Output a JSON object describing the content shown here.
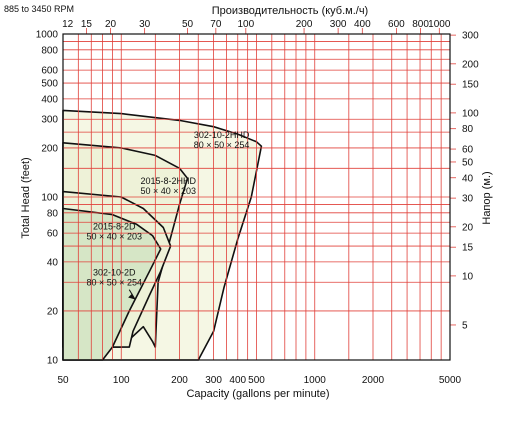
{
  "chart_data": {
    "type": "area",
    "note_text": "885 to 3450 RPM",
    "xlabel": "Capacity (gallons per minute)",
    "ylabel": "Total Head (feet)",
    "x2label": "Производительность (куб.м./ч)",
    "y2label": "Напор (м.)",
    "x_scale": "log",
    "y_scale": "log",
    "xlim": [
      50,
      5000
    ],
    "ylim": [
      10,
      1000
    ],
    "x_ticks": [
      {
        "value": 50,
        "label": "50"
      },
      {
        "value": 100,
        "label": "100"
      },
      {
        "value": 200,
        "label": "200"
      },
      {
        "value": 300,
        "label": "300"
      },
      {
        "value": 400,
        "label": "400"
      },
      {
        "value": 500,
        "label": "500"
      },
      {
        "value": 1000,
        "label": "1000"
      },
      {
        "value": 2000,
        "label": "2000"
      },
      {
        "value": 5000,
        "label": "5000"
      }
    ],
    "y_ticks": [
      {
        "value": 10,
        "label": "10"
      },
      {
        "value": 20,
        "label": "20"
      },
      {
        "value": 40,
        "label": "40"
      },
      {
        "value": 60,
        "label": "60"
      },
      {
        "value": 80,
        "label": "80"
      },
      {
        "value": 100,
        "label": "100"
      },
      {
        "value": 200,
        "label": "200"
      },
      {
        "value": 300,
        "label": "300"
      },
      {
        "value": 400,
        "label": "400"
      },
      {
        "value": 500,
        "label": "500"
      },
      {
        "value": 600,
        "label": "600"
      },
      {
        "value": 800,
        "label": "800"
      },
      {
        "value": 1000,
        "label": "1000"
      }
    ],
    "x2_ticks": [
      {
        "value": 12,
        "label": "12"
      },
      {
        "value": 15,
        "label": "15"
      },
      {
        "value": 20,
        "label": "20"
      },
      {
        "value": 30,
        "label": "30"
      },
      {
        "value": 50,
        "label": "50"
      },
      {
        "value": 70,
        "label": "70"
      },
      {
        "value": 100,
        "label": "100"
      },
      {
        "value": 200,
        "label": "200"
      },
      {
        "value": 300,
        "label": "300"
      },
      {
        "value": 400,
        "label": "400"
      },
      {
        "value": 600,
        "label": "600"
      },
      {
        "value": 800,
        "label": "800"
      },
      {
        "value": 1000,
        "label": "1000"
      }
    ],
    "y2_ticks": [
      {
        "value": 300,
        "label": "300"
      },
      {
        "value": 200,
        "label": "200"
      },
      {
        "value": 150,
        "label": "150"
      },
      {
        "value": 100,
        "label": "100"
      },
      {
        "value": 80,
        "label": "80"
      },
      {
        "value": 60,
        "label": "60"
      },
      {
        "value": 50,
        "label": "50"
      },
      {
        "value": 40,
        "label": "40"
      },
      {
        "value": 30,
        "label": "30"
      },
      {
        "value": 20,
        "label": "20"
      },
      {
        "value": 15,
        "label": "15"
      },
      {
        "value": 10,
        "label": "10"
      },
      {
        "value": 5,
        "label": "5"
      }
    ],
    "grid_x_values": [
      60,
      70,
      80,
      90,
      100,
      150,
      200,
      250,
      300,
      350,
      400,
      450,
      500,
      600,
      700,
      800,
      900,
      1000,
      1500,
      2000,
      2500,
      3000,
      3500,
      4000,
      4500
    ],
    "grid_y_values": [
      20,
      30,
      40,
      50,
      60,
      70,
      80,
      90,
      100,
      150,
      200,
      250,
      300,
      400,
      500,
      600,
      700,
      800,
      900
    ],
    "grid_x2_values": [
      15,
      20,
      30,
      50,
      70,
      100,
      200,
      300,
      400,
      600,
      800,
      1000
    ],
    "grid_y2_values": [
      5,
      10,
      15,
      20,
      30,
      40,
      50,
      60,
      80,
      100,
      150,
      200,
      300
    ],
    "series": [
      {
        "name": "302-10-2HHD",
        "label_lines": [
          "302-10-2HHD",
          "80 × 50 × 254"
        ],
        "color": "#f5f7e4",
        "boundary": [
          [
            50,
            340
          ],
          [
            100,
            325
          ],
          [
            200,
            295
          ],
          [
            300,
            270
          ],
          [
            400,
            243
          ],
          [
            500,
            218
          ],
          [
            530,
            205
          ],
          [
            470,
            100
          ],
          [
            400,
            55
          ],
          [
            340,
            28
          ],
          [
            300,
            15
          ],
          [
            250,
            10
          ],
          [
            50,
            10
          ]
        ]
      },
      {
        "name": "2015-8-2HHD",
        "label_lines": [
          "2015-8-2HHD",
          "50 × 40 × 203"
        ],
        "color": "#eef2d8",
        "boundary": [
          [
            50,
            215
          ],
          [
            100,
            200
          ],
          [
            150,
            180
          ],
          [
            200,
            150
          ],
          [
            220,
            130
          ],
          [
            200,
            90
          ],
          [
            175,
            50
          ],
          [
            155,
            30
          ],
          [
            150,
            12
          ],
          [
            145,
            13
          ],
          [
            130,
            16
          ],
          [
            100,
            12
          ],
          [
            50,
            12
          ]
        ]
      },
      {
        "name": "2015-8-2D",
        "label_lines": [
          "2015-8-2D",
          "50 × 40 × 203"
        ],
        "color": "#eef2d8",
        "boundary": [
          [
            50,
            108
          ],
          [
            100,
            100
          ],
          [
            130,
            85
          ],
          [
            165,
            65
          ],
          [
            180,
            50
          ],
          [
            160,
            35
          ],
          [
            140,
            25
          ],
          [
            115,
            15
          ],
          [
            110,
            12
          ],
          [
            85,
            12
          ],
          [
            50,
            12
          ]
        ]
      },
      {
        "name": "302-10-2D",
        "label_lines": [
          "302-10-2D",
          "80 × 50 × 254"
        ],
        "color": "#d6e6c6",
        "boundary": [
          [
            50,
            85
          ],
          [
            90,
            78
          ],
          [
            120,
            68
          ],
          [
            145,
            58
          ],
          [
            160,
            48
          ],
          [
            140,
            35
          ],
          [
            110,
            20
          ],
          [
            90,
            12
          ],
          [
            80,
            10
          ],
          [
            50,
            10
          ]
        ]
      }
    ]
  }
}
